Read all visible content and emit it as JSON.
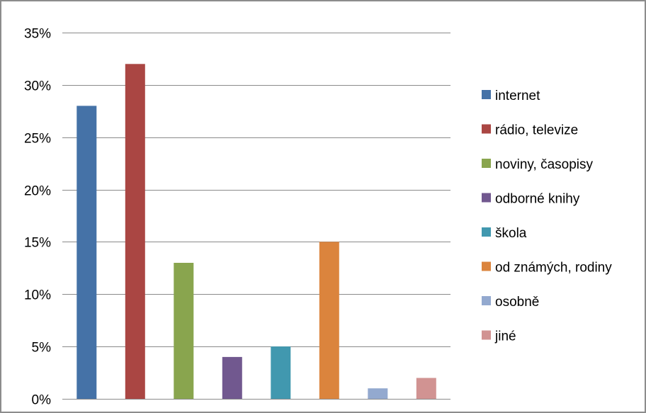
{
  "chart_data": {
    "type": "bar",
    "categories": [
      "internet",
      "rádio, televize",
      "noviny, časopisy",
      "odborné knihy",
      "škola",
      "od známých, rodiny",
      "osobně",
      "jiné"
    ],
    "values": [
      28,
      32,
      13,
      4,
      5,
      15,
      1,
      2
    ],
    "colors": [
      "#4572a7",
      "#aa4643",
      "#89a54e",
      "#71588f",
      "#4198af",
      "#db843d",
      "#93a9cf",
      "#d19392"
    ],
    "ylim": [
      0,
      35
    ],
    "yticks": [
      0,
      5,
      10,
      15,
      20,
      25,
      30,
      35
    ],
    "ytick_labels": [
      "0%",
      "5%",
      "10%",
      "15%",
      "20%",
      "25%",
      "30%",
      "35%"
    ],
    "grid": true,
    "legend_position": "right",
    "title": "",
    "xlabel": "",
    "ylabel": ""
  }
}
